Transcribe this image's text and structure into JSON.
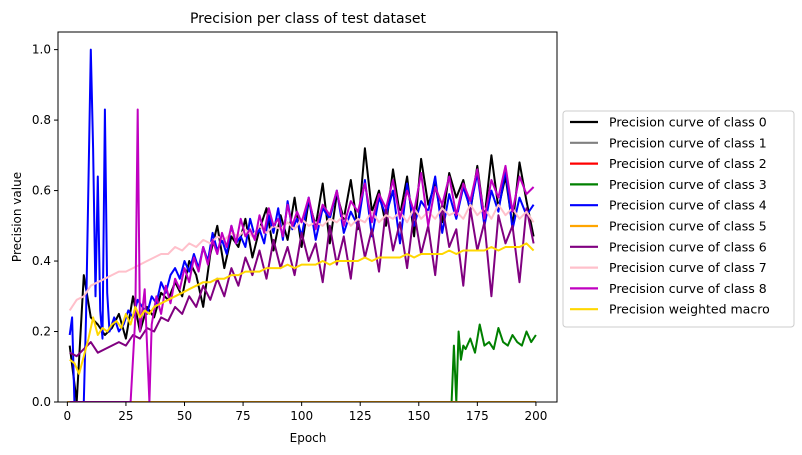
{
  "chart_data": {
    "type": "line",
    "title": "Precision per class of test dataset",
    "xlabel": "Epoch",
    "ylabel": "Precision value",
    "xlim": [
      -4,
      209
    ],
    "ylim": [
      0.0,
      1.05
    ],
    "xticks": [
      0,
      25,
      50,
      75,
      100,
      125,
      150,
      175,
      200
    ],
    "yticks": [
      0.0,
      0.2,
      0.4,
      0.6,
      0.8,
      1.0
    ],
    "xtick_labels": [
      "0",
      "25",
      "50",
      "75",
      "100",
      "125",
      "150",
      "175",
      "200"
    ],
    "ytick_labels": [
      "0.0",
      "0.2",
      "0.4",
      "0.6",
      "0.8",
      "1.0"
    ],
    "grid": false,
    "legend_position": "outside-right",
    "series": [
      {
        "name": "Precision curve of class 0",
        "color": "#000000",
        "x": [
          1,
          4,
          7,
          10,
          13,
          16,
          19,
          22,
          25,
          28,
          31,
          34,
          37,
          40,
          43,
          46,
          49,
          52,
          55,
          58,
          61,
          64,
          67,
          70,
          73,
          76,
          79,
          82,
          85,
          88,
          91,
          94,
          97,
          100,
          103,
          106,
          109,
          112,
          115,
          118,
          121,
          124,
          127,
          130,
          133,
          136,
          139,
          142,
          145,
          148,
          151,
          154,
          157,
          160,
          163,
          166,
          169,
          172,
          175,
          178,
          181,
          184,
          187,
          190,
          193,
          196,
          199
        ],
        "y": [
          0.16,
          0.0,
          0.36,
          0.24,
          0.22,
          0.19,
          0.21,
          0.25,
          0.18,
          0.3,
          0.2,
          0.27,
          0.24,
          0.31,
          0.29,
          0.34,
          0.3,
          0.4,
          0.36,
          0.27,
          0.42,
          0.5,
          0.38,
          0.47,
          0.44,
          0.52,
          0.41,
          0.49,
          0.55,
          0.43,
          0.53,
          0.46,
          0.58,
          0.44,
          0.57,
          0.5,
          0.62,
          0.45,
          0.59,
          0.52,
          0.63,
          0.49,
          0.72,
          0.54,
          0.6,
          0.5,
          0.66,
          0.53,
          0.64,
          0.47,
          0.69,
          0.56,
          0.62,
          0.51,
          0.65,
          0.58,
          0.63,
          0.54,
          0.67,
          0.52,
          0.7,
          0.55,
          0.64,
          0.5,
          0.68,
          0.57,
          0.47
        ]
      },
      {
        "name": "Precision curve of class 1",
        "color": "#808080",
        "x": [
          0,
          200
        ],
        "y": [
          0.0,
          0.0
        ]
      },
      {
        "name": "Precision curve of class 2",
        "color": "#ff0000",
        "x": [
          0,
          200
        ],
        "y": [
          0.0,
          0.0
        ]
      },
      {
        "name": "Precision curve of class 3",
        "color": "#008000",
        "x": [
          0,
          164,
          165,
          166,
          167,
          168,
          169,
          170,
          172,
          174,
          176,
          178,
          180,
          182,
          184,
          186,
          188,
          190,
          192,
          194,
          196,
          198,
          200
        ],
        "y": [
          0.0,
          0.0,
          0.16,
          0.0,
          0.2,
          0.12,
          0.16,
          0.15,
          0.18,
          0.14,
          0.22,
          0.16,
          0.17,
          0.15,
          0.21,
          0.17,
          0.16,
          0.19,
          0.17,
          0.16,
          0.2,
          0.17,
          0.19
        ]
      },
      {
        "name": "Precision curve of class 4",
        "color": "#0000ff",
        "x": [
          1,
          2,
          3,
          5,
          7,
          8,
          9,
          10,
          11,
          12,
          13,
          14,
          15,
          16,
          17,
          18,
          20,
          22,
          24,
          26,
          28,
          30,
          32,
          34,
          36,
          38,
          40,
          42,
          44,
          46,
          48,
          50,
          52,
          54,
          56,
          58,
          60,
          62,
          64,
          66,
          68,
          70,
          72,
          74,
          76,
          78,
          80,
          82,
          84,
          86,
          88,
          90,
          92,
          94,
          96,
          98,
          100,
          103,
          106,
          109,
          112,
          115,
          118,
          121,
          124,
          127,
          130,
          133,
          136,
          139,
          142,
          145,
          148,
          151,
          154,
          157,
          160,
          163,
          166,
          169,
          172,
          175,
          178,
          181,
          184,
          187,
          190,
          193,
          196,
          199
        ],
        "y": [
          0.19,
          0.24,
          0.0,
          0.0,
          0.0,
          0.25,
          0.63,
          1.0,
          0.72,
          0.3,
          0.64,
          0.26,
          0.18,
          0.83,
          0.31,
          0.2,
          0.24,
          0.2,
          0.22,
          0.26,
          0.24,
          0.29,
          0.27,
          0.25,
          0.3,
          0.28,
          0.34,
          0.31,
          0.36,
          0.38,
          0.35,
          0.4,
          0.37,
          0.42,
          0.38,
          0.44,
          0.4,
          0.48,
          0.43,
          0.46,
          0.42,
          0.5,
          0.45,
          0.47,
          0.44,
          0.52,
          0.47,
          0.49,
          0.45,
          0.53,
          0.48,
          0.55,
          0.46,
          0.57,
          0.49,
          0.52,
          0.47,
          0.58,
          0.46,
          0.55,
          0.52,
          0.6,
          0.48,
          0.54,
          0.5,
          0.63,
          0.47,
          0.58,
          0.53,
          0.6,
          0.45,
          0.62,
          0.5,
          0.57,
          0.54,
          0.64,
          0.48,
          0.59,
          0.52,
          0.61,
          0.55,
          0.65,
          0.5,
          0.6,
          0.54,
          0.66,
          0.49,
          0.58,
          0.53,
          0.56
        ]
      },
      {
        "name": "Precision curve of class 5",
        "color": "#ffa500",
        "x": [
          0,
          200
        ],
        "y": [
          0.0,
          0.0
        ]
      },
      {
        "name": "Precision curve of class 6",
        "color": "#800080",
        "x": [
          1,
          4,
          7,
          10,
          13,
          16,
          19,
          22,
          25,
          28,
          31,
          34,
          37,
          40,
          43,
          46,
          49,
          52,
          55,
          58,
          61,
          64,
          67,
          70,
          73,
          76,
          79,
          82,
          85,
          88,
          91,
          94,
          97,
          100,
          103,
          106,
          109,
          112,
          115,
          118,
          121,
          124,
          127,
          130,
          133,
          136,
          139,
          142,
          145,
          148,
          151,
          154,
          157,
          160,
          163,
          166,
          169,
          172,
          175,
          178,
          181,
          184,
          187,
          190,
          193,
          196,
          199
        ],
        "y": [
          0.14,
          0.13,
          0.15,
          0.17,
          0.14,
          0.15,
          0.16,
          0.17,
          0.16,
          0.19,
          0.18,
          0.21,
          0.2,
          0.24,
          0.23,
          0.27,
          0.25,
          0.3,
          0.27,
          0.33,
          0.29,
          0.35,
          0.3,
          0.38,
          0.33,
          0.41,
          0.36,
          0.43,
          0.35,
          0.46,
          0.38,
          0.44,
          0.36,
          0.48,
          0.4,
          0.45,
          0.34,
          0.5,
          0.39,
          0.47,
          0.35,
          0.52,
          0.41,
          0.49,
          0.37,
          0.55,
          0.43,
          0.51,
          0.38,
          0.54,
          0.42,
          0.5,
          0.36,
          0.56,
          0.44,
          0.49,
          0.33,
          0.55,
          0.43,
          0.51,
          0.3,
          0.53,
          0.45,
          0.5,
          0.34,
          0.55,
          0.45
        ]
      },
      {
        "name": "Precision curve of class 7",
        "color": "#ffc0cb",
        "x": [
          1,
          4,
          7,
          10,
          13,
          16,
          19,
          22,
          25,
          28,
          31,
          34,
          37,
          40,
          43,
          46,
          49,
          52,
          55,
          58,
          61,
          64,
          67,
          70,
          73,
          76,
          79,
          82,
          85,
          88,
          91,
          94,
          97,
          100,
          103,
          106,
          109,
          112,
          115,
          118,
          121,
          124,
          127,
          130,
          133,
          136,
          139,
          142,
          145,
          148,
          151,
          154,
          157,
          160,
          163,
          166,
          169,
          172,
          175,
          178,
          181,
          184,
          187,
          190,
          193,
          196,
          199
        ],
        "y": [
          0.26,
          0.29,
          0.3,
          0.33,
          0.34,
          0.35,
          0.36,
          0.37,
          0.37,
          0.38,
          0.39,
          0.4,
          0.41,
          0.42,
          0.42,
          0.44,
          0.43,
          0.45,
          0.44,
          0.46,
          0.45,
          0.47,
          0.46,
          0.48,
          0.47,
          0.49,
          0.47,
          0.5,
          0.48,
          0.5,
          0.49,
          0.51,
          0.49,
          0.52,
          0.5,
          0.51,
          0.5,
          0.52,
          0.51,
          0.53,
          0.5,
          0.52,
          0.51,
          0.54,
          0.51,
          0.53,
          0.52,
          0.54,
          0.51,
          0.55,
          0.52,
          0.54,
          0.52,
          0.55,
          0.53,
          0.54,
          0.52,
          0.56,
          0.53,
          0.55,
          0.52,
          0.56,
          0.53,
          0.55,
          0.52,
          0.54,
          0.51
        ]
      },
      {
        "name": "Precision curve of class 8",
        "color": "#c000c0",
        "x": [
          1,
          3,
          5,
          7,
          9,
          11,
          13,
          15,
          17,
          19,
          21,
          23,
          25,
          27,
          29,
          30,
          31,
          33,
          35,
          36,
          38,
          40,
          42,
          44,
          46,
          48,
          50,
          52,
          54,
          56,
          58,
          60,
          62,
          64,
          66,
          68,
          70,
          72,
          74,
          76,
          78,
          80,
          82,
          84,
          86,
          88,
          90,
          92,
          94,
          96,
          98,
          100,
          103,
          106,
          109,
          112,
          115,
          118,
          121,
          124,
          127,
          130,
          133,
          136,
          139,
          142,
          145,
          148,
          151,
          154,
          157,
          160,
          163,
          166,
          169,
          172,
          175,
          178,
          181,
          184,
          187,
          190,
          193,
          196,
          199
        ],
        "y": [
          0.0,
          0.0,
          0.0,
          0.0,
          0.0,
          0.0,
          0.0,
          0.0,
          0.0,
          0.0,
          0.0,
          0.0,
          0.0,
          0.0,
          0.24,
          0.83,
          0.2,
          0.32,
          0.0,
          0.22,
          0.3,
          0.25,
          0.33,
          0.28,
          0.35,
          0.32,
          0.38,
          0.34,
          0.41,
          0.37,
          0.44,
          0.39,
          0.46,
          0.42,
          0.48,
          0.44,
          0.5,
          0.45,
          0.52,
          0.47,
          0.49,
          0.46,
          0.53,
          0.48,
          0.55,
          0.5,
          0.52,
          0.47,
          0.56,
          0.5,
          0.54,
          0.51,
          0.58,
          0.49,
          0.56,
          0.53,
          0.6,
          0.5,
          0.57,
          0.54,
          0.62,
          0.51,
          0.59,
          0.55,
          0.63,
          0.52,
          0.6,
          0.54,
          0.65,
          0.5,
          0.61,
          0.56,
          0.64,
          0.53,
          0.62,
          0.57,
          0.66,
          0.52,
          0.63,
          0.58,
          0.67,
          0.54,
          0.64,
          0.59,
          0.61
        ]
      },
      {
        "name": "Precision weighted macro",
        "color": "#ffd700",
        "x": [
          1,
          3,
          5,
          7,
          9,
          11,
          13,
          15,
          17,
          19,
          21,
          23,
          25,
          27,
          29,
          31,
          33,
          35,
          37,
          40,
          43,
          46,
          49,
          52,
          55,
          58,
          61,
          64,
          67,
          70,
          73,
          76,
          79,
          82,
          85,
          88,
          91,
          94,
          97,
          100,
          103,
          106,
          109,
          112,
          115,
          118,
          121,
          124,
          127,
          130,
          133,
          136,
          139,
          142,
          145,
          148,
          151,
          154,
          157,
          160,
          163,
          166,
          169,
          172,
          175,
          178,
          181,
          184,
          187,
          190,
          193,
          196,
          199
        ],
        "y": [
          0.12,
          0.11,
          0.08,
          0.13,
          0.18,
          0.24,
          0.19,
          0.21,
          0.2,
          0.22,
          0.23,
          0.21,
          0.25,
          0.22,
          0.27,
          0.24,
          0.26,
          0.25,
          0.27,
          0.28,
          0.29,
          0.3,
          0.31,
          0.32,
          0.33,
          0.34,
          0.34,
          0.35,
          0.35,
          0.36,
          0.36,
          0.37,
          0.37,
          0.37,
          0.38,
          0.38,
          0.38,
          0.39,
          0.38,
          0.39,
          0.39,
          0.39,
          0.4,
          0.39,
          0.4,
          0.4,
          0.4,
          0.4,
          0.41,
          0.4,
          0.41,
          0.41,
          0.41,
          0.41,
          0.42,
          0.41,
          0.42,
          0.42,
          0.42,
          0.42,
          0.43,
          0.42,
          0.43,
          0.43,
          0.43,
          0.43,
          0.44,
          0.43,
          0.44,
          0.44,
          0.44,
          0.45,
          0.43
        ]
      }
    ]
  }
}
